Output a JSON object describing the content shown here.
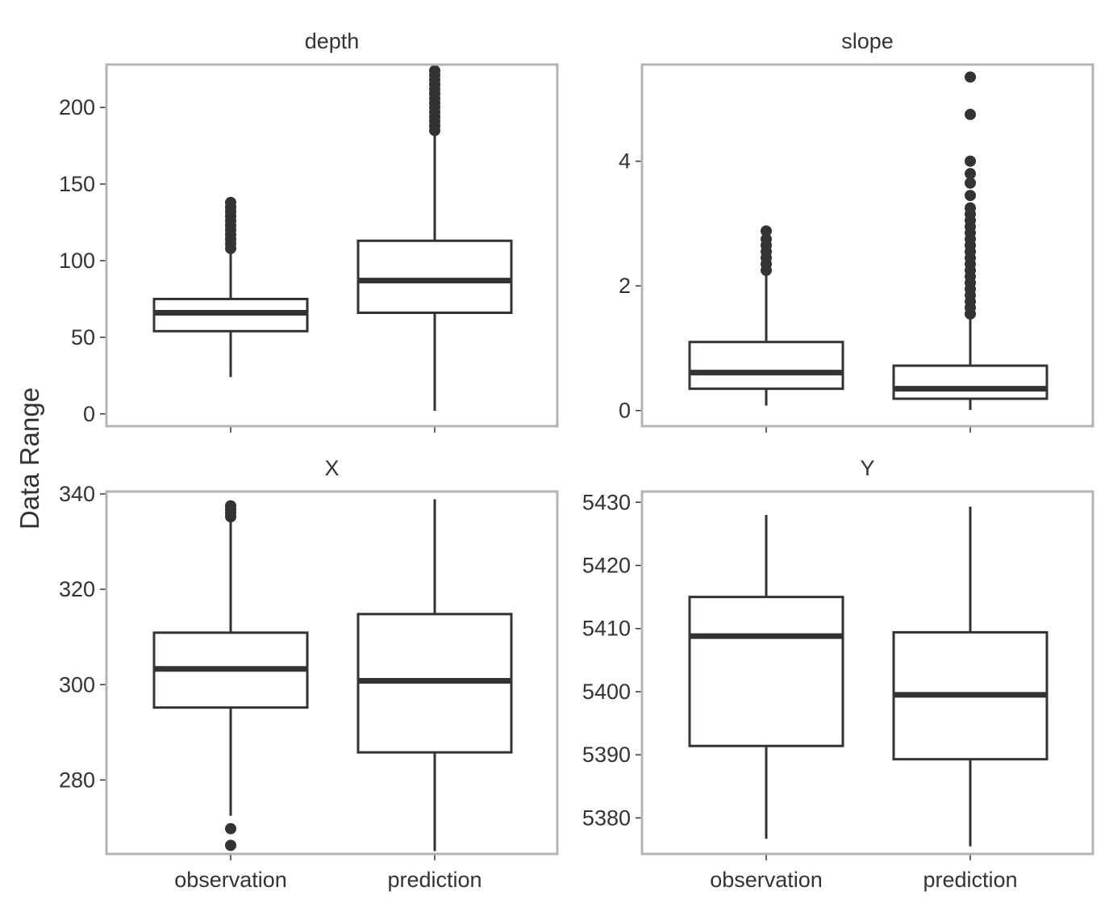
{
  "chart_data": {
    "type": "box",
    "shared_ylabel": "Data Range",
    "categories": [
      "observation",
      "prediction"
    ],
    "panels": [
      {
        "title": "depth",
        "ylim": [
          -8,
          228
        ],
        "yticks": [
          0,
          50,
          100,
          150,
          200
        ],
        "ytick_labels": [
          "0",
          "50",
          "100",
          "150",
          "200"
        ],
        "boxes": [
          {
            "category": "observation",
            "min": 24,
            "q1": 54,
            "median": 66,
            "q3": 75,
            "max": 106,
            "outliers": [
              108,
              111,
              114,
              117,
              120,
              123,
              126,
              129,
              132,
              135,
              138
            ]
          },
          {
            "category": "prediction",
            "min": 2,
            "q1": 66,
            "median": 87,
            "q3": 113,
            "max": 183,
            "outliers": [
              185,
              188,
              191,
              194,
              197,
              200,
              203,
              206,
              209,
              212,
              215,
              218,
              221,
              224
            ]
          }
        ]
      },
      {
        "title": "slope",
        "ylim": [
          -0.25,
          5.55
        ],
        "yticks": [
          0,
          2,
          4
        ],
        "ytick_labels": [
          "0",
          "2",
          "4"
        ],
        "boxes": [
          {
            "category": "observation",
            "min": 0.08,
            "q1": 0.35,
            "median": 0.61,
            "q3": 1.1,
            "max": 2.2,
            "outliers": [
              2.25,
              2.35,
              2.45,
              2.55,
              2.65,
              2.75,
              2.88
            ]
          },
          {
            "category": "prediction",
            "min": 0.01,
            "q1": 0.19,
            "median": 0.35,
            "q3": 0.72,
            "max": 1.5,
            "outliers": [
              1.55,
              1.65,
              1.75,
              1.85,
              1.95,
              2.05,
              2.15,
              2.25,
              2.35,
              2.45,
              2.55,
              2.65,
              2.75,
              2.85,
              2.95,
              3.05,
              3.15,
              3.25,
              3.45,
              3.65,
              3.8,
              4.0,
              4.75,
              5.35
            ]
          }
        ]
      },
      {
        "title": "X",
        "ylim": [
          264.5,
          340.5
        ],
        "yticks": [
          280,
          300,
          320,
          340
        ],
        "ytick_labels": [
          "280",
          "300",
          "320",
          "340"
        ],
        "boxes": [
          {
            "category": "observation",
            "min": 272.5,
            "q1": 295.2,
            "median": 303.3,
            "q3": 310.9,
            "max": 334.5,
            "outliers": [
              335.2,
              336,
              336.8,
              337.5,
              269.8,
              266.3
            ]
          },
          {
            "category": "prediction",
            "min": 265.1,
            "q1": 285.8,
            "median": 300.8,
            "q3": 314.8,
            "max": 338.9,
            "outliers": []
          }
        ]
      },
      {
        "title": "Y",
        "ylim": [
          5374.3,
          5431.7
        ],
        "yticks": [
          5380,
          5390,
          5400,
          5410,
          5420,
          5430
        ],
        "ytick_labels": [
          "5380",
          "5390",
          "5400",
          "5410",
          "5420",
          "5430"
        ],
        "boxes": [
          {
            "category": "observation",
            "min": 5376.7,
            "q1": 5391.4,
            "median": 5408.8,
            "q3": 5415.0,
            "max": 5428.0,
            "outliers": []
          },
          {
            "category": "prediction",
            "min": 5375.5,
            "q1": 5389.3,
            "median": 5399.5,
            "q3": 5409.4,
            "max": 5429.3,
            "outliers": []
          }
        ]
      }
    ]
  }
}
